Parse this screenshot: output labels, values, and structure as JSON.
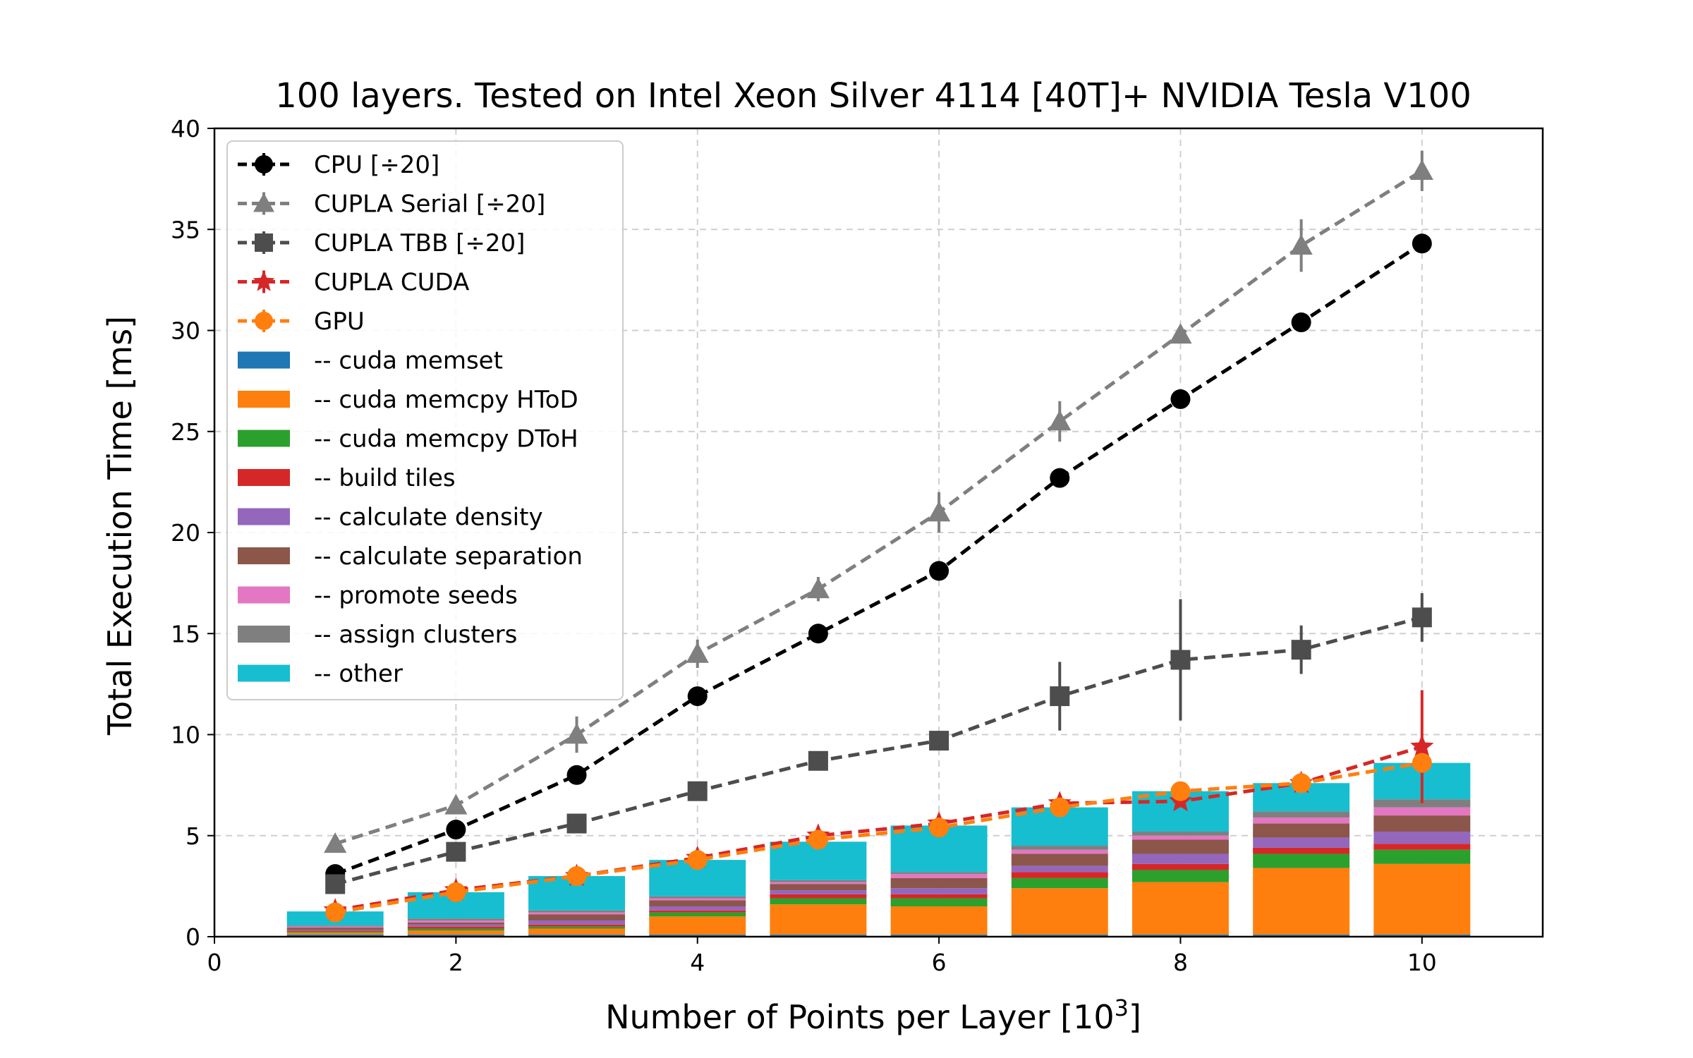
{
  "chart_data": {
    "type": "bar",
    "title": "100 layers. Tested on Intel Xeon Silver 4114 [40T]+ NVIDIA Tesla V100",
    "xlabel": "Number of Points per Layer [10",
    "xlabel_sup": "3",
    "xlabel_end": "]",
    "ylabel": "Total Execution Time [ms]",
    "xlim": [
      0,
      11
    ],
    "ylim": [
      0,
      40
    ],
    "xticks": [
      0,
      2,
      4,
      6,
      8,
      10
    ],
    "yticks": [
      0,
      5,
      10,
      15,
      20,
      25,
      30,
      35,
      40
    ],
    "grid": true,
    "legend_position": "upper-left",
    "x": [
      1,
      2,
      3,
      4,
      5,
      6,
      7,
      8,
      9,
      10
    ],
    "line_series": [
      {
        "name": "CPU [÷20]",
        "color": "#000000",
        "marker": "circle",
        "values": [
          3.1,
          5.3,
          8.0,
          11.9,
          15.0,
          18.1,
          22.7,
          26.6,
          30.4,
          34.3
        ],
        "errors": [
          0.2,
          0.2,
          0.2,
          0.2,
          0.2,
          0.2,
          0.2,
          0.2,
          0.2,
          0.2
        ]
      },
      {
        "name": "CUPLA Serial [÷20]",
        "color": "#7f7f7f",
        "marker": "triangle",
        "values": [
          4.6,
          6.5,
          10.0,
          14.0,
          17.2,
          21.0,
          25.5,
          29.8,
          34.2,
          37.9
        ],
        "errors": [
          0.2,
          0.2,
          0.9,
          0.7,
          0.6,
          1.0,
          1.0,
          0.3,
          1.3,
          1.0
        ]
      },
      {
        "name": "CUPLA TBB [÷20]",
        "color": "#4d4d4d",
        "marker": "square",
        "values": [
          2.6,
          4.2,
          5.6,
          7.2,
          8.7,
          9.7,
          11.9,
          13.7,
          14.2,
          15.8
        ],
        "errors": [
          0.3,
          0.3,
          0.3,
          0.3,
          0.3,
          0.3,
          1.7,
          3.0,
          1.2,
          1.2
        ]
      },
      {
        "name": "CUPLA CUDA",
        "color": "#d62728",
        "marker": "star",
        "values": [
          1.3,
          2.3,
          3.0,
          3.9,
          5.0,
          5.6,
          6.6,
          6.7,
          7.6,
          9.4
        ],
        "errors": [
          0.2,
          0.2,
          0.2,
          0.2,
          0.2,
          0.2,
          0.2,
          0.3,
          0.3,
          2.8
        ]
      },
      {
        "name": "GPU",
        "color": "#ff7f0e",
        "marker": "circle",
        "values": [
          1.2,
          2.2,
          3.0,
          3.8,
          4.8,
          5.4,
          6.4,
          7.2,
          7.6,
          8.6
        ],
        "errors": [
          0.1,
          0.1,
          0.1,
          0.1,
          0.1,
          0.1,
          0.1,
          0.1,
          0.1,
          0.1
        ]
      }
    ],
    "bar_series": [
      {
        "name": "-- cuda memset",
        "color": "#1f77b4",
        "values": [
          0.1,
          0.1,
          0.1,
          0.1,
          0.1,
          0.1,
          0.1,
          0.1,
          0.1,
          0.1
        ]
      },
      {
        "name": "-- cuda memcpy HToD",
        "color": "#ff7f0e",
        "values": [
          0.1,
          0.2,
          0.3,
          0.9,
          1.5,
          1.4,
          2.3,
          2.6,
          3.3,
          3.5
        ]
      },
      {
        "name": "-- cuda memcpy DToH",
        "color": "#2ca02c",
        "values": [
          0.05,
          0.1,
          0.1,
          0.2,
          0.3,
          0.4,
          0.5,
          0.6,
          0.7,
          0.7
        ]
      },
      {
        "name": "-- build tiles",
        "color": "#d62728",
        "values": [
          0.05,
          0.1,
          0.1,
          0.1,
          0.2,
          0.2,
          0.3,
          0.3,
          0.3,
          0.3
        ]
      },
      {
        "name": "-- calculate density",
        "color": "#9467bd",
        "values": [
          0.05,
          0.1,
          0.2,
          0.2,
          0.2,
          0.3,
          0.3,
          0.5,
          0.5,
          0.6
        ]
      },
      {
        "name": "-- calculate separation",
        "color": "#8c564b",
        "values": [
          0.1,
          0.1,
          0.3,
          0.3,
          0.3,
          0.5,
          0.6,
          0.7,
          0.7,
          0.8
        ]
      },
      {
        "name": "-- promote seeds",
        "color": "#e377c2",
        "values": [
          0.05,
          0.1,
          0.1,
          0.1,
          0.1,
          0.2,
          0.2,
          0.2,
          0.3,
          0.4
        ]
      },
      {
        "name": "-- assign clusters",
        "color": "#7f7f7f",
        "values": [
          0.05,
          0.1,
          0.1,
          0.1,
          0.1,
          0.1,
          0.2,
          0.2,
          0.3,
          0.4
        ]
      },
      {
        "name": "-- other",
        "color": "#17becf",
        "values": [
          0.7,
          1.3,
          1.7,
          1.8,
          1.9,
          2.3,
          1.9,
          2.0,
          1.4,
          1.8
        ]
      }
    ]
  }
}
